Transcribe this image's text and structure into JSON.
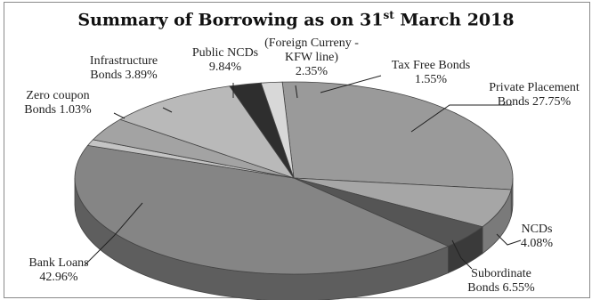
{
  "chart_data": {
    "type": "pie",
    "title": {
      "main": "Summary of Borrowing as on 31",
      "sup": "st",
      "tail": " March 2018"
    },
    "slices": [
      {
        "label": "Private Placement Bonds",
        "value": 27.75,
        "label_text": [
          "Private Placement",
          "Bonds 27.75%"
        ],
        "color": "#9a9a9a",
        "side": "#6f6f6f"
      },
      {
        "label": "Subordinate Bonds",
        "value": 6.55,
        "label_text": [
          "Subordinate",
          "Bonds 6.55%"
        ],
        "color": "#a6a6a6",
        "side": "#7a7a7a"
      },
      {
        "label": "NCDs",
        "value": 4.08,
        "label_text": [
          "NCDs",
          "4.08%"
        ],
        "color": "#555555",
        "side": "#3a3a3a"
      },
      {
        "label": "Bank Loans",
        "value": 42.96,
        "label_text": [
          "Bank Loans",
          "42.96%"
        ],
        "color": "#858585",
        "side": "#5e5e5e"
      },
      {
        "label": "Zero coupon Bonds",
        "value": 1.03,
        "label_text": [
          "Zero coupon",
          "Bonds 1.03%"
        ],
        "color": "#c4c4c4",
        "side": "#909090"
      },
      {
        "label": "Infrastructure Bonds",
        "value": 3.89,
        "label_text": [
          "Infrastructure",
          "Bonds 3.89%"
        ],
        "color": "#a3a3a3",
        "side": "#767676"
      },
      {
        "label": "Public NCDs",
        "value": 9.84,
        "label_text": [
          "Public NCDs",
          "9.84%"
        ],
        "color": "#b9b9b9",
        "side": "#8a8a8a"
      },
      {
        "label": "(Foreign Curreny - KFW line)",
        "value": 2.35,
        "label_text": [
          "(Foreign Curreny -",
          "KFW line)",
          "2.35%"
        ],
        "color": "#2e2e2e",
        "side": "#1c1c1c"
      },
      {
        "label": "Tax Free Bonds",
        "value": 1.55,
        "label_text": [
          "Tax Free Bonds",
          "1.55%"
        ],
        "color": "#d8d8d8",
        "side": "#a0a0a0"
      }
    ]
  }
}
